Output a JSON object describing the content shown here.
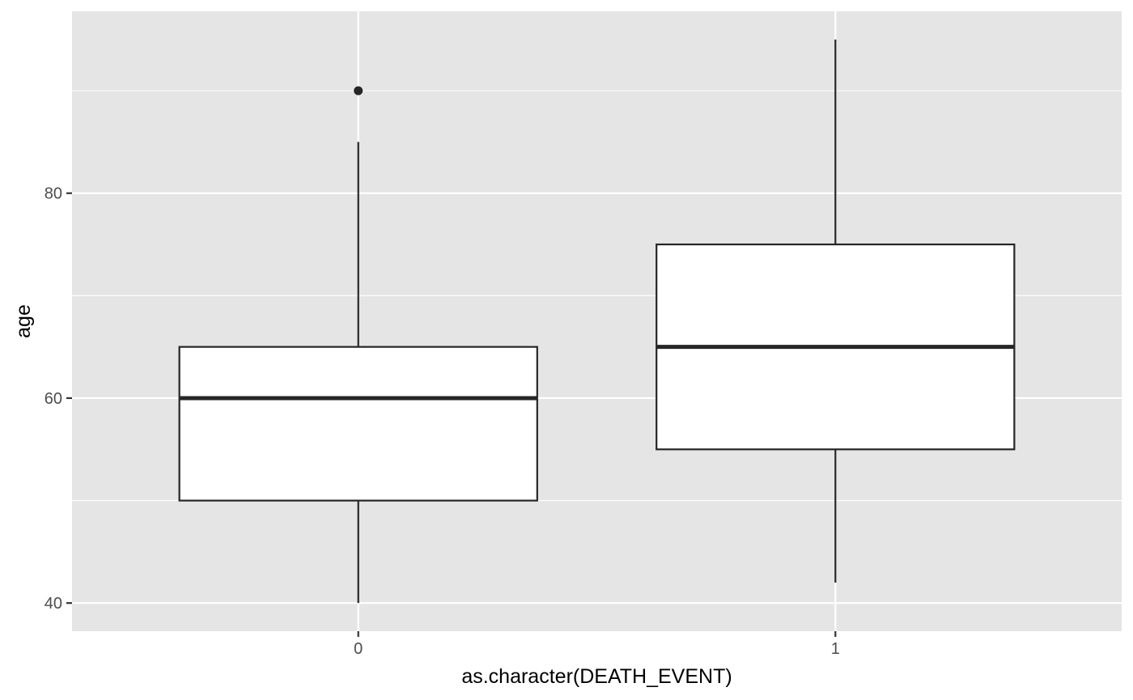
{
  "chart_data": {
    "type": "boxplot",
    "title": "",
    "xlabel": "as.character(DEATH_EVENT)",
    "ylabel": "age",
    "categories": [
      "0",
      "1"
    ],
    "ylim": [
      37.25,
      97.75
    ],
    "y_ticks": [
      40,
      60,
      80
    ],
    "y_minor_ticks": [
      50,
      70,
      90
    ],
    "grid": true,
    "legend": "none",
    "boxes": [
      {
        "category": "0",
        "whisker_low": 40,
        "q1": 50,
        "median": 60,
        "q3": 65,
        "whisker_high": 85,
        "outliers": [
          90
        ]
      },
      {
        "category": "1",
        "whisker_low": 42,
        "q1": 55,
        "median": 65,
        "q3": 75,
        "whisker_high": 95,
        "outliers": []
      }
    ],
    "colors": {
      "panel_background": "#e5e5e5",
      "grid": "#ffffff",
      "box_fill": "#ffffff",
      "box_line": "#262626"
    }
  }
}
